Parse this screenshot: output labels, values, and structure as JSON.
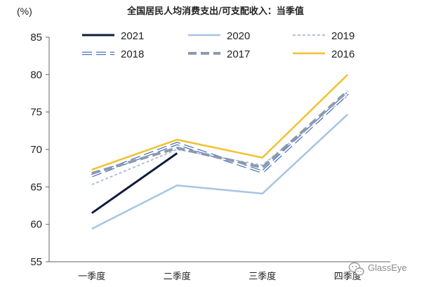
{
  "chart_data": {
    "type": "line",
    "title": "全国居民人均消费支出/可支配收入：当季值",
    "unit": "(%)",
    "categories": [
      "一季度",
      "二季度",
      "三季度",
      "四季度"
    ],
    "ylim": [
      55,
      85
    ],
    "yticks": [
      55,
      60,
      65,
      70,
      75,
      80,
      85
    ],
    "grid": false,
    "legend_position": "top",
    "series": [
      {
        "name": "2021",
        "values": [
          61.5,
          69.5,
          null,
          null
        ],
        "color": "#0d1b3e",
        "style": "solid"
      },
      {
        "name": "2020",
        "values": [
          59.4,
          65.2,
          64.1,
          74.7
        ],
        "color": "#a7c4e2",
        "style": "solid"
      },
      {
        "name": "2019",
        "values": [
          65.3,
          70.0,
          67.9,
          77.2
        ],
        "color": "#b2bfd6",
        "style": "dashed"
      },
      {
        "name": "2018",
        "values": [
          66.5,
          70.8,
          67.0,
          77.5
        ],
        "color": "#4a74c0",
        "style": "hollow-dashed"
      },
      {
        "name": "2017",
        "values": [
          66.8,
          70.2,
          67.6,
          77.8
        ],
        "color": "#8c99ad",
        "style": "thick-dashed"
      },
      {
        "name": "2016",
        "values": [
          67.3,
          71.3,
          68.9,
          80.0
        ],
        "color": "#f2c12e",
        "style": "solid"
      }
    ]
  },
  "watermark": {
    "text": "GlassEye",
    "icon": "wechat-icon"
  }
}
